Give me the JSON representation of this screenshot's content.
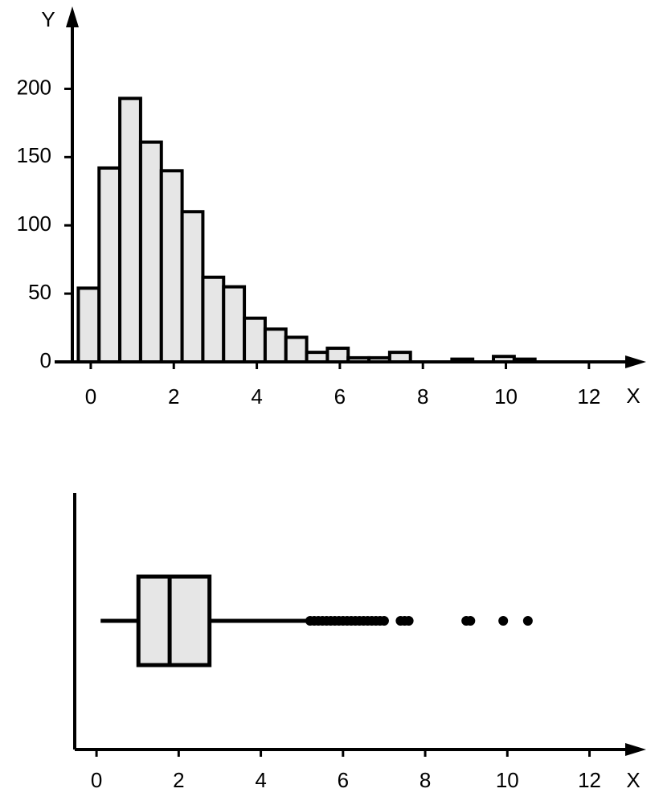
{
  "chart_data": [
    {
      "type": "histogram",
      "ylabel": "Y",
      "xlabel": "X",
      "bins": [
        -0.3,
        0.2,
        0.7,
        1.2,
        1.7,
        2.2,
        2.7,
        3.2,
        3.7,
        4.2,
        4.7,
        5.2,
        5.7,
        6.2,
        6.7,
        7.2,
        7.7,
        8.2,
        8.7,
        9.2,
        9.7,
        10.2,
        10.7
      ],
      "counts": [
        54,
        142,
        193,
        161,
        140,
        110,
        62,
        55,
        32,
        24,
        18,
        7,
        10,
        3,
        3,
        7,
        0,
        0,
        2,
        0,
        4,
        2
      ],
      "color": "#e6e6e6",
      "edgecolor": "#000000",
      "xlim": [
        -0.87,
        13.3
      ],
      "xticks": [
        0,
        2,
        4,
        6,
        8,
        10,
        12
      ],
      "ylim": [
        0,
        258
      ],
      "yticks": [
        0,
        50,
        100,
        150,
        200
      ]
    },
    {
      "type": "box",
      "xlabel": "X",
      "whislo": 0.1,
      "q1": 1.02,
      "med": 1.78,
      "q3": 2.75,
      "whishi": 5.14,
      "fliers": [
        5.2,
        5.3,
        5.4,
        5.5,
        5.6,
        5.7,
        5.8,
        5.9,
        6.0,
        6.1,
        6.2,
        6.3,
        6.4,
        6.5,
        6.6,
        6.7,
        6.8,
        6.9,
        7.0,
        7.4,
        7.5,
        7.6,
        9.0,
        9.1,
        9.9,
        10.5
      ],
      "color": "#e6e6e6",
      "edgecolor": "#000000",
      "xlim": [
        -0.53,
        13.3
      ],
      "xticks": [
        0,
        2,
        4,
        6,
        8,
        10,
        12
      ]
    }
  ]
}
